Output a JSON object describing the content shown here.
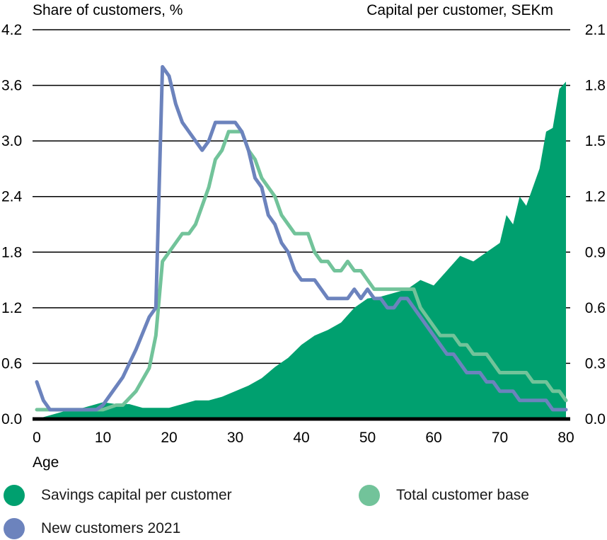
{
  "chart_data": {
    "type": "area+line",
    "left_axis_label": "Share of customers, %",
    "right_axis_label": "Capital per customer, SEKm",
    "xlabel": "Age",
    "x_ticks": [
      0,
      10,
      20,
      30,
      40,
      50,
      60,
      70,
      80
    ],
    "xlim": [
      0,
      80
    ],
    "left_ticks": [
      "0.0",
      "0.6",
      "1.2",
      "1.8",
      "2.4",
      "3.0",
      "3.6",
      "4.2"
    ],
    "left_ylim": [
      0,
      4.2
    ],
    "right_ticks": [
      "0.0",
      "0.3",
      "0.6",
      "0.9",
      "1.2",
      "1.5",
      "1.8",
      "2.1"
    ],
    "right_ylim": [
      0,
      2.1
    ],
    "series": [
      {
        "name": "Savings capital per customer",
        "axis": "right",
        "kind": "area",
        "color": "#00a06f",
        "points": [
          [
            0,
            0
          ],
          [
            2,
            0.02
          ],
          [
            4,
            0.04
          ],
          [
            6,
            0.05
          ],
          [
            8,
            0.07
          ],
          [
            10,
            0.09
          ],
          [
            12,
            0.08
          ],
          [
            14,
            0.08
          ],
          [
            16,
            0.06
          ],
          [
            18,
            0.06
          ],
          [
            20,
            0.06
          ],
          [
            22,
            0.08
          ],
          [
            24,
            0.1
          ],
          [
            26,
            0.1
          ],
          [
            28,
            0.12
          ],
          [
            30,
            0.15
          ],
          [
            32,
            0.18
          ],
          [
            34,
            0.22
          ],
          [
            36,
            0.28
          ],
          [
            38,
            0.33
          ],
          [
            40,
            0.4
          ],
          [
            42,
            0.45
          ],
          [
            44,
            0.48
          ],
          [
            46,
            0.52
          ],
          [
            48,
            0.6
          ],
          [
            50,
            0.65
          ],
          [
            52,
            0.66
          ],
          [
            54,
            0.68
          ],
          [
            56,
            0.7
          ],
          [
            58,
            0.75
          ],
          [
            60,
            0.72
          ],
          [
            62,
            0.8
          ],
          [
            64,
            0.88
          ],
          [
            66,
            0.85
          ],
          [
            68,
            0.9
          ],
          [
            70,
            0.95
          ],
          [
            71,
            1.1
          ],
          [
            72,
            1.05
          ],
          [
            73,
            1.2
          ],
          [
            74,
            1.15
          ],
          [
            75,
            1.25
          ],
          [
            76,
            1.35
          ],
          [
            77,
            1.55
          ],
          [
            78,
            1.57
          ],
          [
            79,
            1.78
          ],
          [
            80,
            1.82
          ]
        ]
      },
      {
        "name": "Total customer base",
        "axis": "left",
        "kind": "line",
        "color": "#72c39a",
        "points": [
          [
            0,
            0.1
          ],
          [
            5,
            0.1
          ],
          [
            10,
            0.1
          ],
          [
            12,
            0.15
          ],
          [
            13,
            0.15
          ],
          [
            15,
            0.3
          ],
          [
            17,
            0.55
          ],
          [
            18,
            0.9
          ],
          [
            19,
            1.7
          ],
          [
            20,
            1.8
          ],
          [
            22,
            2.0
          ],
          [
            23,
            2.0
          ],
          [
            24,
            2.1
          ],
          [
            26,
            2.5
          ],
          [
            27,
            2.8
          ],
          [
            28,
            2.9
          ],
          [
            29,
            3.1
          ],
          [
            31,
            3.1
          ],
          [
            32,
            2.9
          ],
          [
            33,
            2.8
          ],
          [
            34,
            2.6
          ],
          [
            36,
            2.4
          ],
          [
            37,
            2.2
          ],
          [
            38,
            2.1
          ],
          [
            39,
            2.0
          ],
          [
            41,
            2.0
          ],
          [
            42,
            1.8
          ],
          [
            43,
            1.7
          ],
          [
            44,
            1.7
          ],
          [
            45,
            1.6
          ],
          [
            46,
            1.6
          ],
          [
            47,
            1.7
          ],
          [
            48,
            1.6
          ],
          [
            49,
            1.6
          ],
          [
            50,
            1.5
          ],
          [
            51,
            1.4
          ],
          [
            57,
            1.4
          ],
          [
            58,
            1.2
          ],
          [
            59,
            1.1
          ],
          [
            60,
            1.0
          ],
          [
            61,
            0.9
          ],
          [
            63,
            0.9
          ],
          [
            64,
            0.8
          ],
          [
            65,
            0.8
          ],
          [
            66,
            0.7
          ],
          [
            68,
            0.7
          ],
          [
            69,
            0.6
          ],
          [
            70,
            0.5
          ],
          [
            74,
            0.5
          ],
          [
            75,
            0.4
          ],
          [
            77,
            0.4
          ],
          [
            78,
            0.3
          ],
          [
            79,
            0.3
          ],
          [
            80,
            0.2
          ]
        ]
      },
      {
        "name": "New customers 2021",
        "axis": "left",
        "kind": "line",
        "color": "#6c83bd",
        "points": [
          [
            0,
            0.4
          ],
          [
            1,
            0.2
          ],
          [
            2,
            0.1
          ],
          [
            9,
            0.1
          ],
          [
            10,
            0.15
          ],
          [
            11,
            0.25
          ],
          [
            13,
            0.45
          ],
          [
            15,
            0.75
          ],
          [
            17,
            1.1
          ],
          [
            18,
            1.2
          ],
          [
            19,
            3.8
          ],
          [
            20,
            3.7
          ],
          [
            21,
            3.4
          ],
          [
            22,
            3.2
          ],
          [
            24,
            3.0
          ],
          [
            25,
            2.9
          ],
          [
            26,
            3.0
          ],
          [
            27,
            3.2
          ],
          [
            30,
            3.2
          ],
          [
            31,
            3.1
          ],
          [
            32,
            2.9
          ],
          [
            33,
            2.6
          ],
          [
            34,
            2.5
          ],
          [
            35,
            2.2
          ],
          [
            36,
            2.1
          ],
          [
            37,
            1.9
          ],
          [
            38,
            1.8
          ],
          [
            39,
            1.6
          ],
          [
            40,
            1.5
          ],
          [
            42,
            1.5
          ],
          [
            43,
            1.4
          ],
          [
            44,
            1.3
          ],
          [
            47,
            1.3
          ],
          [
            48,
            1.4
          ],
          [
            49,
            1.3
          ],
          [
            50,
            1.4
          ],
          [
            51,
            1.3
          ],
          [
            52,
            1.3
          ],
          [
            53,
            1.2
          ],
          [
            54,
            1.2
          ],
          [
            55,
            1.3
          ],
          [
            56,
            1.3
          ],
          [
            57,
            1.2
          ],
          [
            58,
            1.1
          ],
          [
            59,
            1.0
          ],
          [
            60,
            0.9
          ],
          [
            61,
            0.8
          ],
          [
            62,
            0.7
          ],
          [
            63,
            0.7
          ],
          [
            64,
            0.6
          ],
          [
            65,
            0.5
          ],
          [
            67,
            0.5
          ],
          [
            68,
            0.4
          ],
          [
            69,
            0.4
          ],
          [
            70,
            0.3
          ],
          [
            72,
            0.3
          ],
          [
            73,
            0.2
          ],
          [
            77,
            0.2
          ],
          [
            78,
            0.1
          ],
          [
            80,
            0.1
          ]
        ]
      }
    ],
    "grid": true,
    "legend_position": "bottom"
  },
  "legend": {
    "savings": "Savings capital per customer",
    "total": "Total customer base",
    "new": "New customers 2021"
  },
  "colors": {
    "savings": "#00a06f",
    "total": "#72c39a",
    "new": "#6c83bd"
  }
}
